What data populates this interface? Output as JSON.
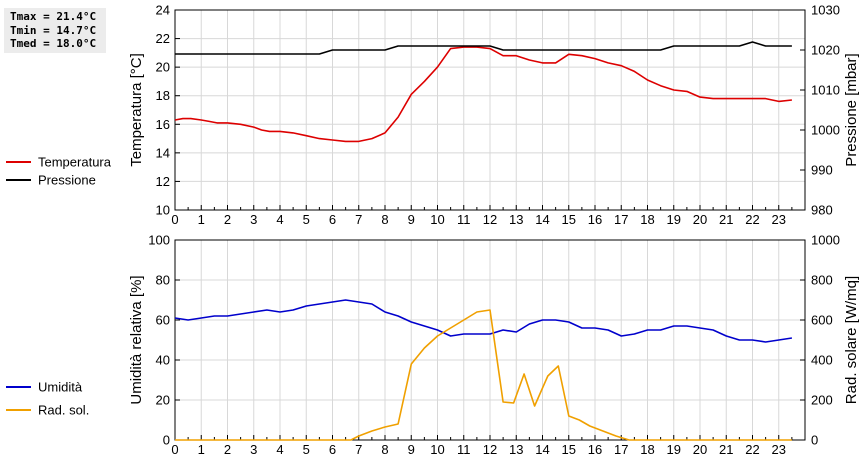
{
  "stats": {
    "tmax": "Tmax = 21.4°C",
    "tmin": "Tmin = 14.7°C",
    "tmed": "Tmed = 18.0°C"
  },
  "chart_data": [
    {
      "type": "line",
      "ylabel": "Temperatura [°C]",
      "y2label": "Pressione [mbar]",
      "xlim": [
        0,
        24
      ],
      "xticks": [
        0,
        1,
        2,
        3,
        4,
        5,
        6,
        7,
        8,
        9,
        10,
        11,
        12,
        13,
        14,
        15,
        16,
        17,
        18,
        19,
        20,
        21,
        22,
        23
      ],
      "ylim": [
        10,
        24
      ],
      "yticks": [
        10,
        12,
        14,
        16,
        18,
        20,
        22,
        24
      ],
      "y2lim": [
        980,
        1030
      ],
      "y2ticks": [
        980,
        990,
        1000,
        1010,
        1020,
        1030
      ],
      "grid": true,
      "legend_position": "left",
      "series": [
        {
          "name": "Temperatura",
          "axis": "left",
          "color": "#dd0000",
          "x": [
            0,
            0.3,
            0.6,
            1,
            1.3,
            1.6,
            2,
            2.5,
            3,
            3.3,
            3.6,
            4,
            4.5,
            5,
            5.5,
            6,
            6.5,
            7,
            7.5,
            8,
            8.5,
            9,
            9.5,
            10,
            10.5,
            11,
            11.5,
            12,
            12.5,
            13,
            13.5,
            14,
            14.5,
            15,
            15.5,
            16,
            16.5,
            17,
            17.5,
            18,
            18.5,
            19,
            19.5,
            20,
            20.5,
            21,
            21.5,
            22,
            22.5,
            23,
            23.5
          ],
          "y": [
            16.3,
            16.4,
            16.4,
            16.3,
            16.2,
            16.1,
            16.1,
            16.0,
            15.8,
            15.6,
            15.5,
            15.5,
            15.4,
            15.2,
            15.0,
            14.9,
            14.8,
            14.8,
            15.0,
            15.4,
            16.5,
            18.1,
            19.0,
            20.0,
            21.3,
            21.4,
            21.4,
            21.3,
            20.8,
            20.8,
            20.5,
            20.3,
            20.3,
            20.9,
            20.8,
            20.6,
            20.3,
            20.1,
            19.7,
            19.1,
            18.7,
            18.4,
            18.3,
            17.9,
            17.8,
            17.8,
            17.8,
            17.8,
            17.8,
            17.6,
            17.7
          ]
        },
        {
          "name": "Pressione",
          "axis": "right",
          "color": "#000000",
          "x": [
            0,
            1,
            2,
            3,
            4,
            5,
            5.5,
            6,
            7,
            8,
            8.5,
            9,
            10,
            11,
            11.5,
            12,
            12.5,
            13,
            14,
            15,
            16,
            17,
            18,
            18.5,
            19,
            20,
            21,
            21.5,
            22,
            22.5,
            23,
            23.5
          ],
          "y": [
            1019,
            1019,
            1019,
            1019,
            1019,
            1019,
            1019,
            1020,
            1020,
            1020,
            1021,
            1021,
            1021,
            1021,
            1021,
            1021,
            1020,
            1020,
            1020,
            1020,
            1020,
            1020,
            1020,
            1020,
            1021,
            1021,
            1021,
            1021,
            1022,
            1021,
            1021,
            1021
          ]
        }
      ]
    },
    {
      "type": "line",
      "ylabel": "Umidità relativa [%]",
      "y2label": "Rad. solare [W/mq]",
      "xlim": [
        0,
        24
      ],
      "xticks": [
        0,
        1,
        2,
        3,
        4,
        5,
        6,
        7,
        8,
        9,
        10,
        11,
        12,
        13,
        14,
        15,
        16,
        17,
        18,
        19,
        20,
        21,
        22,
        23
      ],
      "ylim": [
        0,
        100
      ],
      "yticks": [
        0,
        20,
        40,
        60,
        80,
        100
      ],
      "y2lim": [
        0,
        1000
      ],
      "y2ticks": [
        0,
        200,
        400,
        600,
        800,
        1000
      ],
      "grid": true,
      "legend_position": "left",
      "series": [
        {
          "name": "Umidità",
          "axis": "left",
          "color": "#0000cc",
          "x": [
            0,
            0.5,
            1,
            1.5,
            2,
            2.5,
            3,
            3.5,
            4,
            4.5,
            5,
            5.5,
            6,
            6.5,
            7,
            7.5,
            8,
            8.5,
            9,
            9.5,
            10,
            10.5,
            11,
            11.5,
            12,
            12.5,
            13,
            13.5,
            14,
            14.5,
            15,
            15.5,
            16,
            16.5,
            17,
            17.5,
            18,
            18.5,
            19,
            19.5,
            20,
            20.5,
            21,
            21.5,
            22,
            22.5,
            23,
            23.5
          ],
          "y": [
            61,
            60,
            61,
            62,
            62,
            63,
            64,
            65,
            64,
            65,
            67,
            68,
            69,
            70,
            69,
            68,
            64,
            62,
            59,
            57,
            55,
            52,
            53,
            53,
            53,
            55,
            54,
            58,
            60,
            60,
            59,
            56,
            56,
            55,
            52,
            53,
            55,
            55,
            57,
            57,
            56,
            55,
            52,
            50,
            50,
            49,
            50,
            51
          ]
        },
        {
          "name": "Rad. sol.",
          "axis": "right",
          "color": "#f0a000",
          "x": [
            0,
            1,
            2,
            3,
            4,
            5,
            6,
            6.7,
            7,
            7.5,
            8,
            8.5,
            9,
            9.5,
            10,
            10.5,
            11,
            11.5,
            12,
            12.5,
            12.9,
            13.3,
            13.7,
            14.2,
            14.6,
            15.0,
            15.4,
            15.8,
            16.2,
            16.8,
            17.3,
            17.6,
            18,
            19,
            20,
            21,
            22,
            23,
            23.5
          ],
          "y": [
            0,
            0,
            0,
            0,
            0,
            0,
            0,
            0,
            20,
            45,
            65,
            80,
            380,
            460,
            520,
            560,
            600,
            640,
            650,
            190,
            185,
            330,
            170,
            320,
            370,
            120,
            100,
            70,
            50,
            20,
            0,
            0,
            0,
            0,
            0,
            0,
            0,
            0,
            0
          ]
        }
      ]
    }
  ]
}
